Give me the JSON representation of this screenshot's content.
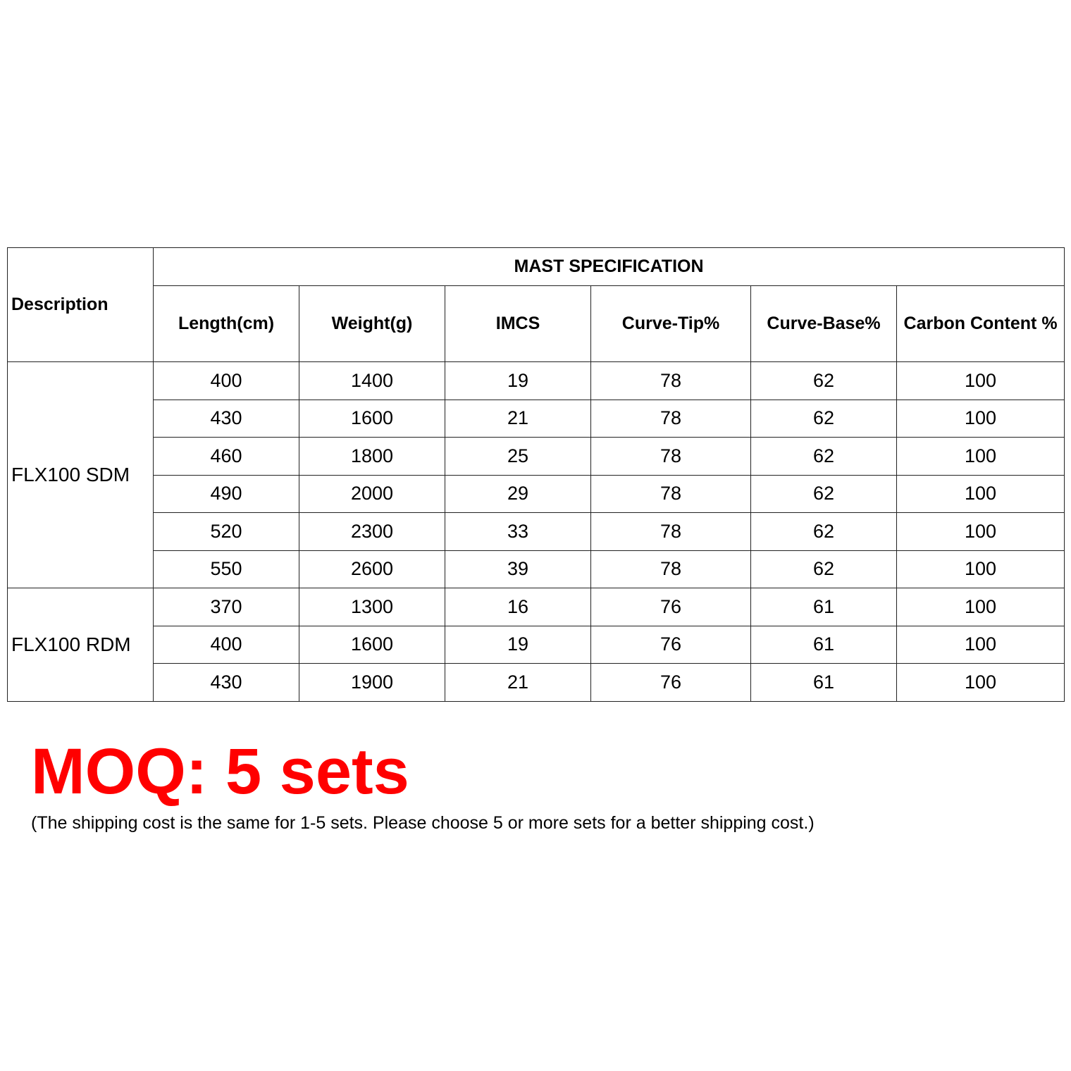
{
  "table": {
    "description_header": "Description",
    "group_header": "MAST SPECIFICATION",
    "columns": [
      "Length(cm)",
      "Weight(g)",
      "IMCS",
      "Curve-Tip%",
      "Curve-Base%",
      "Carbon Content %"
    ],
    "groups": [
      {
        "name": "FLX100 SDM",
        "rows": [
          [
            "400",
            "1400",
            "19",
            "78",
            "62",
            "100"
          ],
          [
            "430",
            "1600",
            "21",
            "78",
            "62",
            "100"
          ],
          [
            "460",
            "1800",
            "25",
            "78",
            "62",
            "100"
          ],
          [
            "490",
            "2000",
            "29",
            "78",
            "62",
            "100"
          ],
          [
            "520",
            "2300",
            "33",
            "78",
            "62",
            "100"
          ],
          [
            "550",
            "2600",
            "39",
            "78",
            "62",
            "100"
          ]
        ]
      },
      {
        "name": "FLX100 RDM",
        "rows": [
          [
            "370",
            "1300",
            "16",
            "76",
            "61",
            "100"
          ],
          [
            "400",
            "1600",
            "19",
            "76",
            "61",
            "100"
          ],
          [
            "430",
            "1900",
            "21",
            "76",
            "61",
            "100"
          ]
        ]
      }
    ]
  },
  "moq": {
    "title": "MOQ: 5 sets",
    "note": "(The shipping cost is the same for 1-5 sets. Please choose 5 or more sets for a better shipping cost.)",
    "color": "#ff0000"
  }
}
